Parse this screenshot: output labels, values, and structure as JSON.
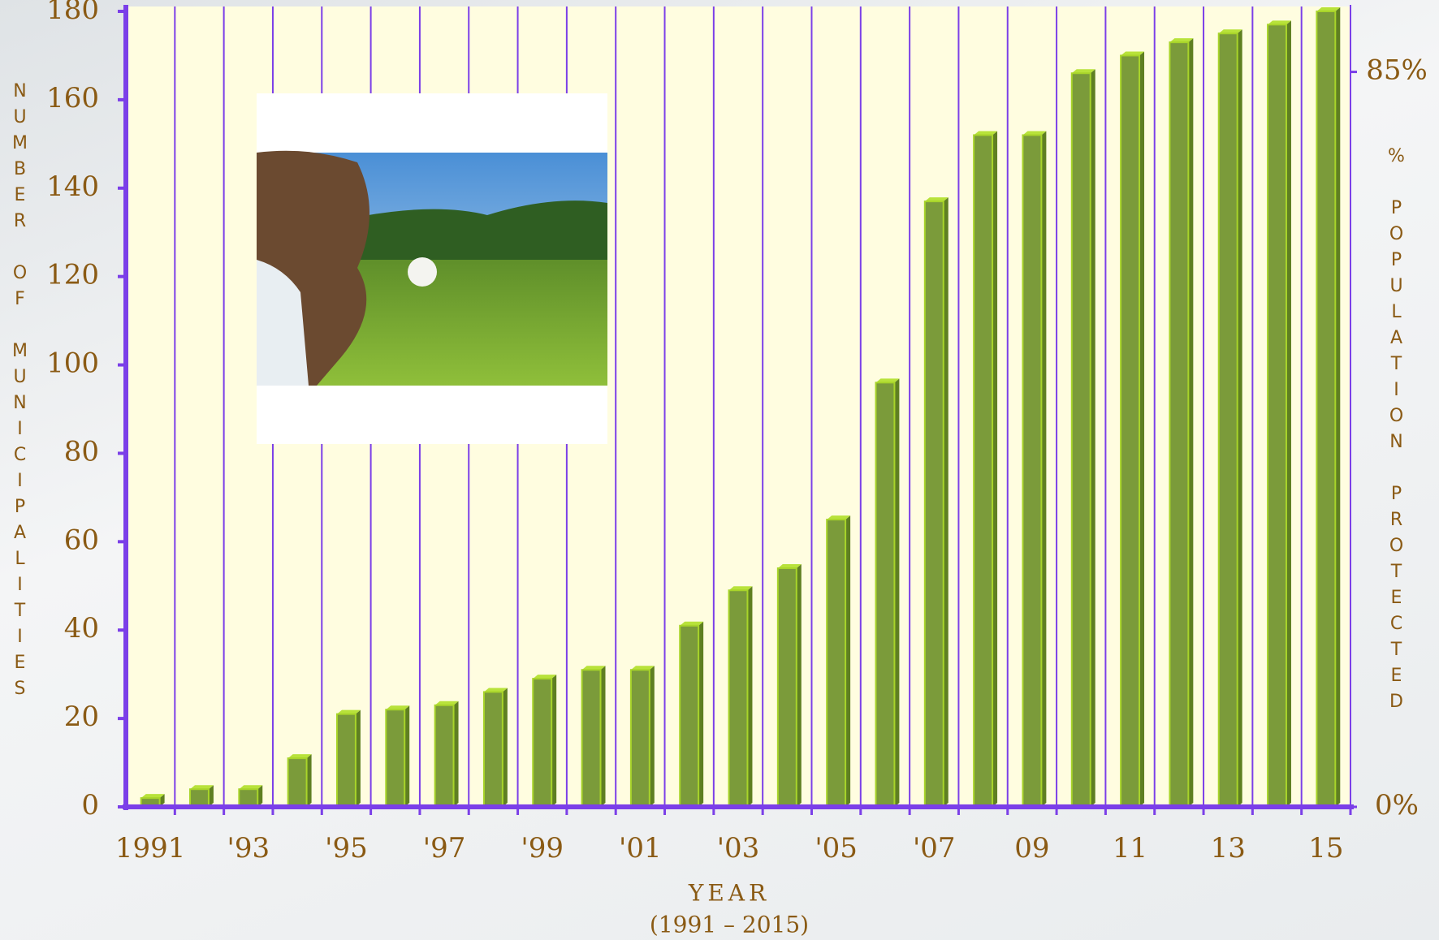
{
  "chart_data": {
    "type": "bar",
    "x_label": "YEAR",
    "x_sublabel": "(1991 – 2015)",
    "y_label": "NUMBER OF MUNICIPALITIES",
    "y2_label": "% POPULATION PROTECTED",
    "categories": [
      "1991",
      null,
      "'93",
      null,
      "'95",
      null,
      "'97",
      null,
      "'99",
      null,
      "'01",
      null,
      "'03",
      null,
      "'05",
      null,
      "'07",
      null,
      "09",
      null,
      "11",
      null,
      "13",
      null,
      "15"
    ],
    "values": [
      2,
      4,
      4,
      11,
      21,
      22,
      23,
      26,
      29,
      31,
      31,
      41,
      49,
      54,
      65,
      96,
      137,
      152,
      152,
      166,
      170,
      173,
      175,
      177,
      180
    ],
    "color": "#7b9b3a",
    "ylim": [
      0,
      180
    ],
    "yticks": [
      0,
      20,
      40,
      60,
      80,
      100,
      120,
      140,
      160,
      180
    ],
    "y2lim": [
      0,
      92
    ],
    "y2ticks": [
      {
        "value": 0,
        "label": "0%"
      },
      {
        "value": 85,
        "label": "85%"
      }
    ],
    "grid": true
  }
}
